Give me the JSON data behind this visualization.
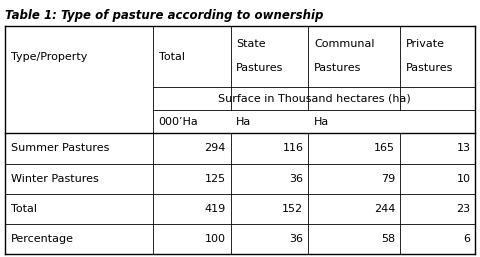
{
  "title": "Table 1: Type of pasture according to ownership",
  "rows": [
    [
      "Summer Pastures",
      "294",
      "116",
      "165",
      "13"
    ],
    [
      "Winter Pastures",
      "125",
      "36",
      "79",
      "10"
    ],
    [
      "Total",
      "419",
      "152",
      "244",
      "23"
    ],
    [
      "Percentage",
      "100",
      "36",
      "58",
      "6"
    ]
  ],
  "figsize": [
    4.8,
    2.57
  ],
  "dpi": 100,
  "title_fontsize": 8.5,
  "cell_fontsize": 8.0,
  "bg_color": "#ffffff"
}
